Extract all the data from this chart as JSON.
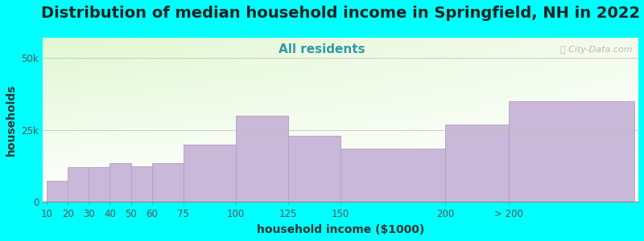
{
  "title": "Distribution of median household income in Springfield, NH in 2022",
  "subtitle": "All residents",
  "xlabel": "household income ($1000)",
  "ylabel": "households",
  "background_color": "#00FFFF",
  "plot_bg_top_left": "#d8eec8",
  "plot_bg_bottom_right": "#f8f8ff",
  "bar_color": "#c9b8d8",
  "bar_edge_color": "#b0a0c8",
  "watermark": "ⓘ City-Data.com",
  "bar_left_edges": [
    10,
    20,
    30,
    40,
    50,
    60,
    75,
    100,
    125,
    150,
    200,
    230
  ],
  "bar_right_edges": [
    20,
    30,
    40,
    50,
    60,
    75,
    100,
    125,
    150,
    200,
    230,
    290
  ],
  "values": [
    7500,
    12000,
    12000,
    13500,
    12500,
    13500,
    20000,
    30000,
    23000,
    18500,
    27000,
    35000
  ],
  "yticks": [
    0,
    25000,
    50000
  ],
  "ytick_labels": [
    "0",
    "25k",
    "50k"
  ],
  "ylim": [
    0,
    57000
  ],
  "xlim": [
    8,
    292
  ],
  "xtick_positions": [
    10,
    20,
    30,
    40,
    50,
    60,
    75,
    100,
    125,
    150,
    200,
    230
  ],
  "xtick_labels": [
    "10",
    "20",
    "30",
    "40",
    "50",
    "60",
    "75",
    "100",
    "125",
    "150",
    "200",
    "> 200"
  ],
  "title_fontsize": 14,
  "subtitle_fontsize": 11,
  "axis_label_fontsize": 10,
  "tick_fontsize": 8.5
}
